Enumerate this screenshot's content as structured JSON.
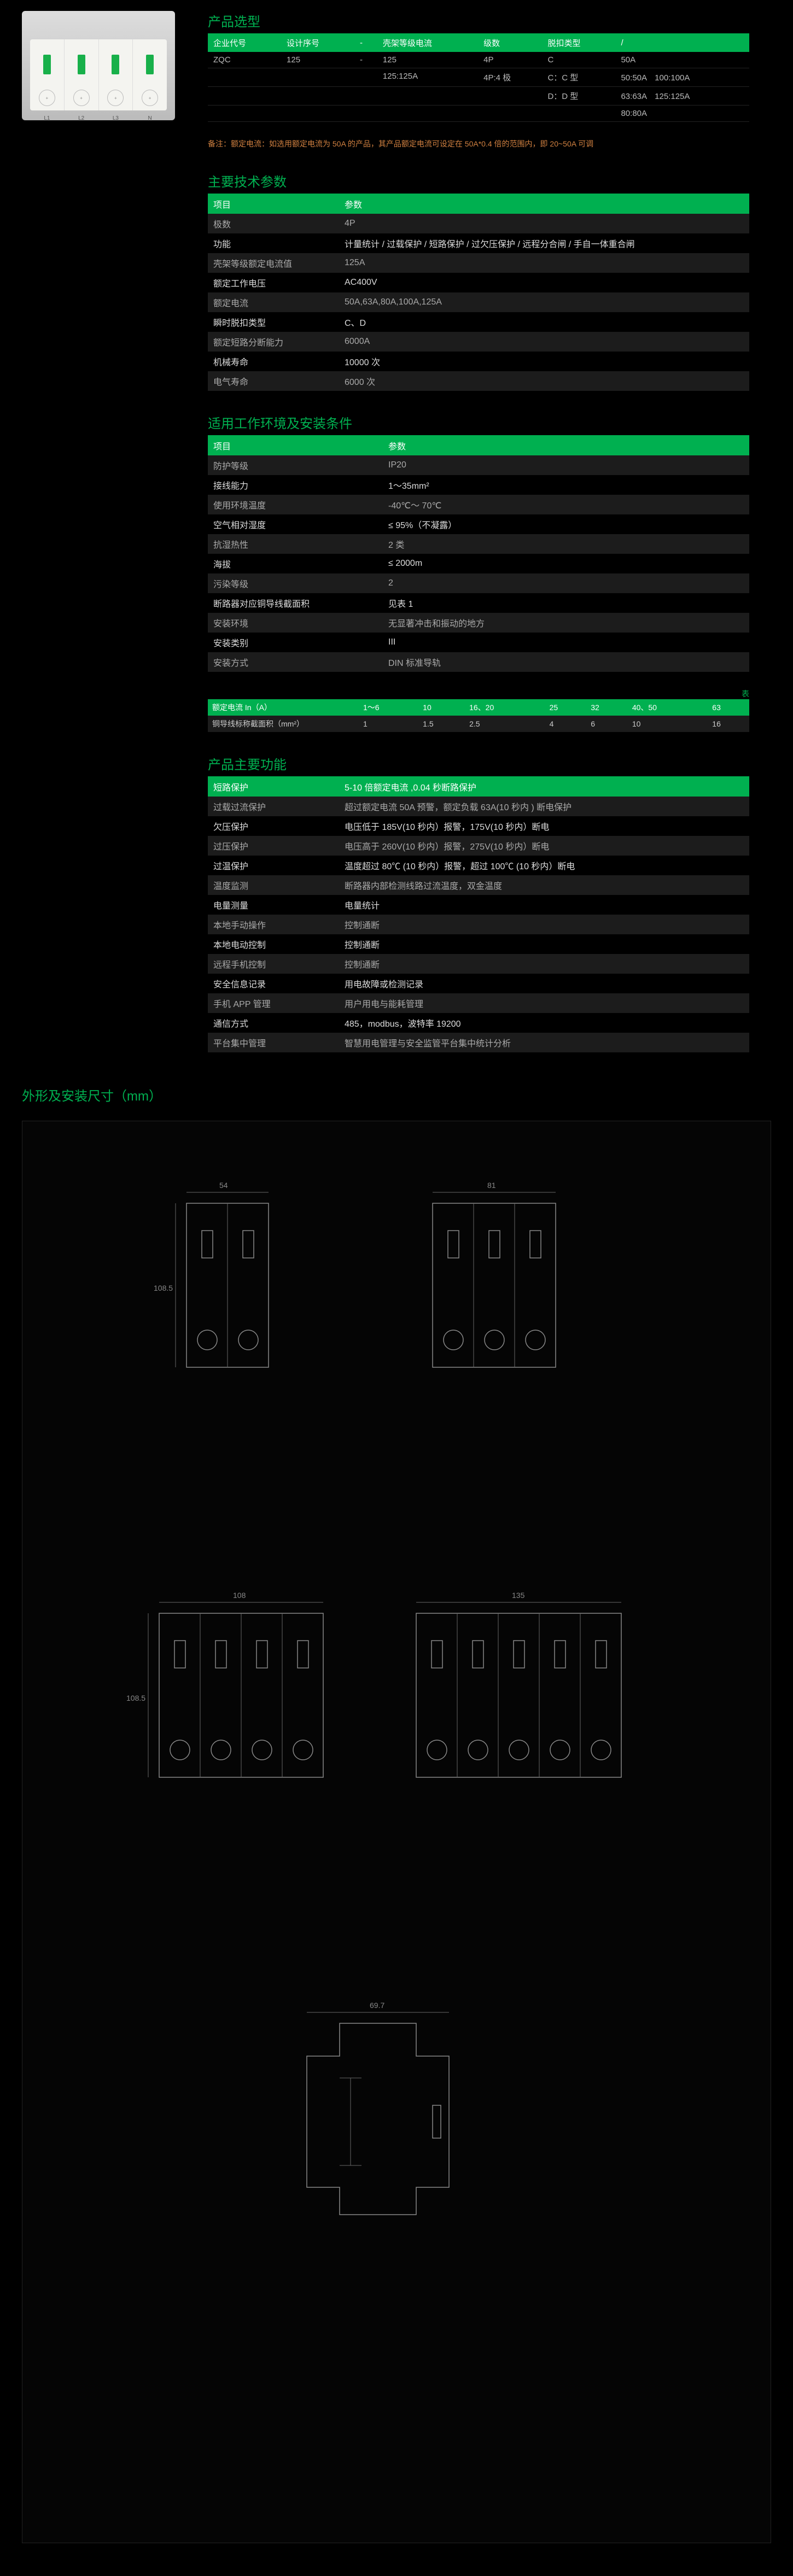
{
  "sections": {
    "product_type": "产品选型",
    "tech_spec": "主要技术参数",
    "env": "适用工作环境及安装条件",
    "func": "产品主要功能",
    "dim": "外形及安装尺寸（mm）"
  },
  "poles": [
    "L1",
    "L2",
    "L3",
    "N"
  ],
  "type_table": {
    "headers": [
      "企业代号",
      "设计序号",
      "-",
      "壳架等级电流",
      "级数",
      "脱扣类型",
      "/"
    ],
    "rows": [
      [
        "ZQC",
        "125",
        "-",
        "125",
        "4P",
        "C",
        "50A"
      ],
      [
        "",
        "",
        "",
        "125:125A",
        "4P:4 极",
        "C：C 型",
        "50:50A　100:100A"
      ],
      [
        "",
        "",
        "",
        "",
        "",
        "D：D 型",
        "63:63A　125:125A"
      ],
      [
        "",
        "",
        "",
        "",
        "",
        "",
        "80:80A"
      ]
    ]
  },
  "note": "备注：额定电流：如选用额定电流为 50A 的产品，其产品额定电流可设定在 50A*0.4 倍的范围内，即 20~50A 可调",
  "tech_spec": {
    "header": [
      "项目",
      "参数"
    ],
    "rows": [
      {
        "k": "极数",
        "v": "4P",
        "dark": true
      },
      {
        "k": "功能",
        "v": "计量统计 / 过载保护 / 短路保护 / 过欠压保护 / 远程分合闸 / 手自一体重合闸",
        "dark": false
      },
      {
        "k": "壳架等级额定电流值",
        "v": "125A",
        "dark": true
      },
      {
        "k": "额定工作电压",
        "v": "AC400V",
        "dark": false
      },
      {
        "k": "额定电流",
        "v": "50A,63A,80A,100A,125A",
        "dark": true
      },
      {
        "k": "瞬时脱扣类型",
        "v": "C、D",
        "dark": false
      },
      {
        "k": "额定短路分断能力",
        "v": "6000A",
        "dark": true
      },
      {
        "k": "机械寿命",
        "v": "10000 次",
        "dark": false
      },
      {
        "k": "电气寿命",
        "v": "6000 次",
        "dark": true
      }
    ]
  },
  "env": {
    "header": [
      "项目",
      "参数"
    ],
    "rows": [
      {
        "k": "防护等级",
        "v": "IP20",
        "dark": true
      },
      {
        "k": "接线能力",
        "v": "1～35mm²",
        "dark": false
      },
      {
        "k": "使用环境温度",
        "v": "-40℃～ 70℃",
        "dark": true
      },
      {
        "k": "空气相对湿度",
        "v": "≤ 95%（不凝露）",
        "dark": false
      },
      {
        "k": "抗湿热性",
        "v": "2 类",
        "dark": true
      },
      {
        "k": "海拔",
        "v": "≤ 2000m",
        "dark": false
      },
      {
        "k": "污染等级",
        "v": "2",
        "dark": true
      },
      {
        "k": "断路器对应铜导线截面积",
        "v": "见表 1",
        "dark": false
      },
      {
        "k": "安装环境",
        "v": "无显著冲击和振动的地方",
        "dark": true
      },
      {
        "k": "安装类别",
        "v": "III",
        "dark": false
      },
      {
        "k": "安装方式",
        "v": "DIN 标准导轨",
        "dark": true
      }
    ]
  },
  "cur_table": {
    "end_label": "表",
    "headers": [
      "额定电流 In（A）",
      "1～6",
      "10",
      "16、20",
      "25",
      "32",
      "40、50",
      "63"
    ],
    "row_label": "铜导线标称截面积（mm²）",
    "row": [
      "1",
      "1.5",
      "2.5",
      "4",
      "6",
      "10",
      "16"
    ]
  },
  "func": {
    "header": [
      "短路保护",
      "5-10 倍额定电流 ,0.04 秒断路保护"
    ],
    "rows": [
      {
        "k": "过载过流保护",
        "v": "超过额定电流 50A 预警，额定负载 63A(10 秒内 ) 断电保护",
        "dark": true
      },
      {
        "k": "欠压保护",
        "v": "电压低于 185V(10 秒内）报警，175V(10 秒内）断电",
        "dark": false
      },
      {
        "k": "过压保护",
        "v": "电压高于 260V(10 秒内）报警，275V(10 秒内）断电",
        "dark": true
      },
      {
        "k": "过温保护",
        "v": "温度超过 80℃ (10 秒内）报警，超过 100℃ (10 秒内）断电",
        "dark": false
      },
      {
        "k": "温度监测",
        "v": "断路器内部检测线路过流温度，双金温度",
        "dark": true
      },
      {
        "k": "电量测量",
        "v": "电量统计",
        "dark": false
      },
      {
        "k": "本地手动操作",
        "v": "控制通断",
        "dark": true
      },
      {
        "k": "本地电动控制",
        "v": "控制通断",
        "dark": false
      },
      {
        "k": "远程手机控制",
        "v": "控制通断",
        "dark": true
      },
      {
        "k": "安全信息记录",
        "v": "用电故障或检测记录",
        "dark": false
      },
      {
        "k": "手机 APP 管理",
        "v": "用户用电与能耗管理",
        "dark": true
      },
      {
        "k": "通信方式",
        "v": "485，modbus，波特率 19200",
        "dark": false
      },
      {
        "k": "平台集中管理",
        "v": "智慧用电管理与安全监管平台集中统计分析",
        "dark": true
      }
    ]
  },
  "diagrams": {
    "widths": [
      "54",
      "81",
      "108",
      "135",
      "69.7"
    ],
    "height": "108.5"
  },
  "colors": {
    "accent": "#00b050",
    "dark_row": "#1c1c1c"
  }
}
